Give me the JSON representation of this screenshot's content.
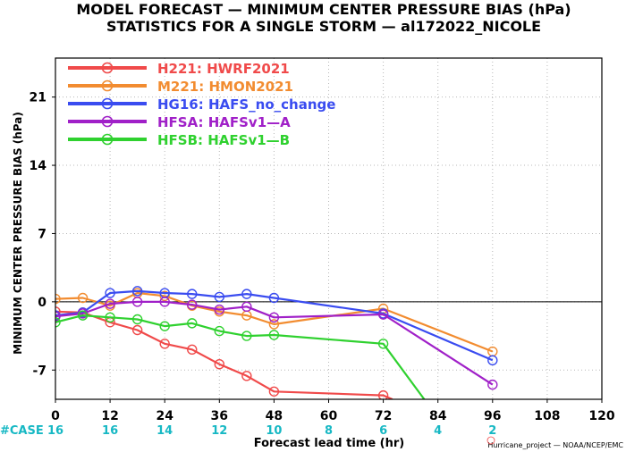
{
  "title_line1": "MODEL FORECAST — MINIMUM CENTER PRESSURE BIAS (hPa)",
  "title_line2": "STATISTICS FOR A SINGLE STORM — al172022_NICOLE",
  "case_label": "#CASE",
  "footer": "Hurricane_project — NOAA/NCEP/EMC",
  "chart_data": {
    "type": "line",
    "xlabel": "Forecast lead time (hr)",
    "ylabel": "MINIMUM CENTER PRESSURE BIAS (hPa)",
    "xlim": [
      0,
      120
    ],
    "ylim": [
      -10,
      25
    ],
    "xticks": [
      "0",
      "12",
      "24",
      "36",
      "48",
      "60",
      "72",
      "84",
      "96",
      "108",
      "120"
    ],
    "yticks": [
      "21",
      "14",
      "7",
      "0",
      "-7"
    ],
    "grid": true,
    "legend_position": "top-left",
    "cases": [
      {
        "x": 0,
        "n": "16"
      },
      {
        "x": 12,
        "n": "16"
      },
      {
        "x": 24,
        "n": "14"
      },
      {
        "x": 36,
        "n": "12"
      },
      {
        "x": 48,
        "n": "10"
      },
      {
        "x": 60,
        "n": "8"
      },
      {
        "x": 72,
        "n": "6"
      },
      {
        "x": 84,
        "n": "4"
      },
      {
        "x": 96,
        "n": "2"
      }
    ],
    "series": [
      {
        "name": "H221: HWRF2021",
        "color": "#f04a4a",
        "x": [
          0,
          6,
          12,
          18,
          24,
          30,
          36,
          42,
          48,
          72,
          74
        ],
        "y": [
          -1.0,
          -1.1,
          -2.1,
          -2.9,
          -4.3,
          -4.9,
          -6.4,
          -7.6,
          -9.2,
          -9.6,
          -10.0
        ],
        "markers": [
          true,
          true,
          true,
          true,
          true,
          true,
          true,
          true,
          true,
          true,
          false
        ]
      },
      {
        "name": "M221: HMON2021",
        "color": "#f28c30",
        "x": [
          0,
          6,
          12,
          18,
          24,
          30,
          36,
          42,
          48,
          72,
          96
        ],
        "y": [
          0.3,
          0.4,
          -0.4,
          0.9,
          0.6,
          -0.4,
          -1.0,
          -1.4,
          -2.3,
          -0.7,
          -5.1
        ],
        "markers": [
          true,
          true,
          true,
          true,
          true,
          true,
          true,
          true,
          true,
          true,
          true
        ]
      },
      {
        "name": "HG16: HAFS_no_change",
        "color": "#3a4cf0",
        "x": [
          0,
          6,
          12,
          18,
          24,
          30,
          36,
          42,
          48,
          72,
          96
        ],
        "y": [
          -1.4,
          -1.1,
          0.9,
          1.1,
          0.9,
          0.8,
          0.5,
          0.8,
          0.4,
          -1.2,
          -6.0
        ],
        "markers": [
          true,
          true,
          true,
          true,
          true,
          true,
          true,
          true,
          true,
          true,
          true
        ]
      },
      {
        "name": "HFSA: HAFSv1—A",
        "color": "#a020c8",
        "x": [
          0,
          6,
          12,
          18,
          24,
          30,
          36,
          42,
          48,
          72,
          96
        ],
        "y": [
          -1.5,
          -1.2,
          -0.2,
          0.0,
          0.0,
          -0.3,
          -0.8,
          -0.5,
          -1.6,
          -1.3,
          -8.5
        ],
        "markers": [
          true,
          true,
          true,
          true,
          true,
          true,
          true,
          true,
          true,
          true,
          true
        ]
      },
      {
        "name": "HFSB: HAFSv1—B",
        "color": "#2fd12f",
        "x": [
          0,
          6,
          12,
          18,
          24,
          30,
          36,
          42,
          48,
          72,
          81
        ],
        "y": [
          -2.1,
          -1.4,
          -1.6,
          -1.8,
          -2.5,
          -2.2,
          -3.0,
          -3.5,
          -3.4,
          -4.3,
          -10.0
        ],
        "markers": [
          true,
          true,
          true,
          true,
          true,
          true,
          true,
          true,
          true,
          true,
          false
        ]
      }
    ]
  }
}
